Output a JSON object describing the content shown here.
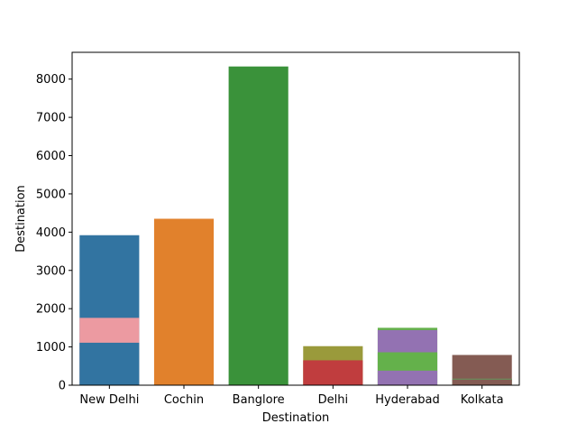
{
  "chart_data": {
    "type": "bar",
    "title": "",
    "xlabel": "Destination",
    "ylabel": "Destination",
    "ylim": [
      0,
      8700
    ],
    "yticks": [
      0,
      1000,
      2000,
      3000,
      4000,
      5000,
      6000,
      7000,
      8000
    ],
    "grid": false,
    "categories": [
      "New Delhi",
      "Cochin",
      "Banglore",
      "Delhi",
      "Hyderabad",
      "Kolkata"
    ],
    "bars": [
      {
        "category": "New Delhi",
        "layers": [
          {
            "value": 3920,
            "color": "#3274a1"
          },
          {
            "value": 1760,
            "color": "#ec9aa1"
          },
          {
            "value": 1110,
            "color": "#3274a1"
          }
        ]
      },
      {
        "category": "Cochin",
        "layers": [
          {
            "value": 4350,
            "color": "#e1812c"
          }
        ]
      },
      {
        "category": "Banglore",
        "layers": [
          {
            "value": 8330,
            "color": "#3a923a"
          }
        ]
      },
      {
        "category": "Delhi",
        "layers": [
          {
            "value": 1020,
            "color": "#9a9a3b"
          },
          {
            "value": 650,
            "color": "#c03d3e"
          }
        ]
      },
      {
        "category": "Hyderabad",
        "layers": [
          {
            "value": 1500,
            "color": "#64b14b"
          },
          {
            "value": 1440,
            "color": "#9372b2"
          },
          {
            "value": 860,
            "color": "#64b14b"
          },
          {
            "value": 380,
            "color": "#9372b2"
          }
        ]
      },
      {
        "category": "Kolkata",
        "layers": [
          {
            "value": 790,
            "color": "#845b53"
          },
          {
            "value": 170,
            "color": "#5fa35f"
          },
          {
            "value": 150,
            "color": "#845b53"
          }
        ]
      }
    ]
  }
}
